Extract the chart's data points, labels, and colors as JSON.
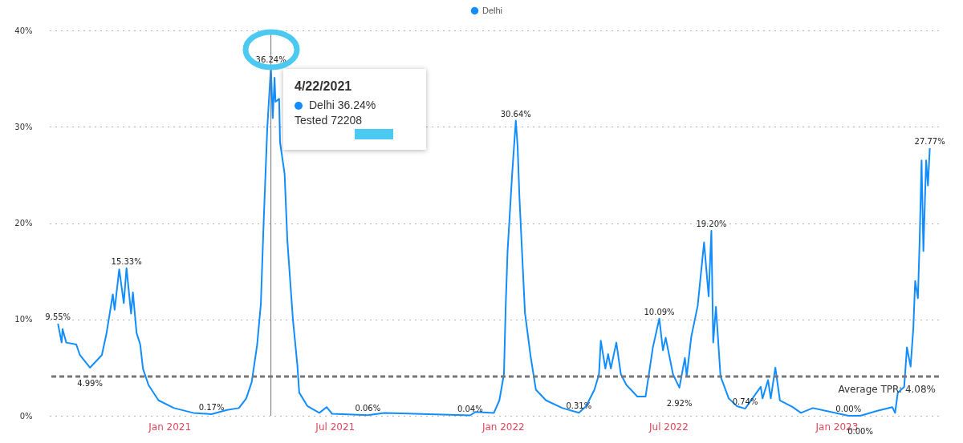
{
  "chart_data": {
    "type": "line",
    "x": [
      "2020-09-01",
      "2020-09-05",
      "2020-09-06",
      "2020-09-10",
      "2020-09-21",
      "2020-09-25",
      "2020-10-06",
      "2020-10-19",
      "2020-10-24",
      "2020-10-31",
      "2020-11-02",
      "2020-11-07",
      "2020-11-12",
      "2020-11-15",
      "2020-11-20",
      "2020-11-22",
      "2020-11-26",
      "2020-11-30",
      "2020-12-03",
      "2020-12-09",
      "2020-12-20",
      "2021-01-06",
      "2021-01-27",
      "2021-02-16",
      "2021-03-05",
      "2021-03-18",
      "2021-03-26",
      "2021-04-01",
      "2021-04-07",
      "2021-04-11",
      "2021-04-14",
      "2021-04-18",
      "2021-04-22",
      "2021-04-24",
      "2021-04-26",
      "2021-04-27",
      "2021-05-01",
      "2021-05-02",
      "2021-05-07",
      "2021-05-10",
      "2021-05-16",
      "2021-05-21",
      "2021-05-23",
      "2021-06-01",
      "2021-06-14",
      "2021-06-22",
      "2021-06-28",
      "2021-08-06",
      "2021-08-24",
      "2021-11-26",
      "2021-12-02",
      "2021-12-22",
      "2021-12-28",
      "2022-01-02",
      "2022-01-04",
      "2022-01-06",
      "2022-01-11",
      "2022-01-15",
      "2022-01-17",
      "2022-01-19",
      "2022-01-25",
      "2022-01-31",
      "2022-02-06",
      "2022-02-17",
      "2022-03-07",
      "2022-03-25",
      "2022-04-02",
      "2022-04-11",
      "2022-04-16",
      "2022-04-18",
      "2022-04-23",
      "2022-04-26",
      "2022-04-29",
      "2022-05-05",
      "2022-05-10",
      "2022-05-16",
      "2022-05-28",
      "2022-06-06",
      "2022-06-14",
      "2022-06-21",
      "2022-06-25",
      "2022-06-28",
      "2022-07-06",
      "2022-07-13",
      "2022-07-19",
      "2022-07-21",
      "2022-07-26",
      "2022-08-02",
      "2022-08-09",
      "2022-08-14",
      "2022-08-17",
      "2022-08-19",
      "2022-08-22",
      "2022-08-27",
      "2022-09-05",
      "2022-09-14",
      "2022-09-23",
      "2022-10-10",
      "2022-10-12",
      "2022-10-18",
      "2022-10-21",
      "2022-10-26",
      "2022-10-31",
      "2022-11-14",
      "2022-11-23",
      "2022-12-06",
      "2023-01-14",
      "2023-01-27",
      "2023-02-14",
      "2023-03-03",
      "2023-03-06",
      "2023-03-09",
      "2023-03-16",
      "2023-03-19",
      "2023-03-23",
      "2023-03-26",
      "2023-03-28",
      "2023-03-31",
      "2023-04-02",
      "2023-04-04",
      "2023-04-06",
      "2023-04-09",
      "2023-04-11",
      "2023-04-13"
    ],
    "series": [
      {
        "name": "Delhi",
        "color": "#118dff",
        "values": [
          9.55,
          7.6,
          9.0,
          7.6,
          7.4,
          6.3,
          4.99,
          6.3,
          8.5,
          12.6,
          11.0,
          15.2,
          11.7,
          15.33,
          10.6,
          12.8,
          8.6,
          7.4,
          4.9,
          3.2,
          1.6,
          0.8,
          0.3,
          0.17,
          0.6,
          0.8,
          1.8,
          3.5,
          7.4,
          11.6,
          19.9,
          29.8,
          36.24,
          30.9,
          35.1,
          32.6,
          32.9,
          28.4,
          25.1,
          18.2,
          10.1,
          5.2,
          2.4,
          1.0,
          0.3,
          0.9,
          0.2,
          0.06,
          0.3,
          0.04,
          0.4,
          0.3,
          1.6,
          4.3,
          11.6,
          17.1,
          25.1,
          30.64,
          27.9,
          22.6,
          10.7,
          6.3,
          2.7,
          1.6,
          0.8,
          0.31,
          1.0,
          2.7,
          4.3,
          7.8,
          4.9,
          6.4,
          4.9,
          7.6,
          4.3,
          3.2,
          2.0,
          2.0,
          7.1,
          10.09,
          6.8,
          8.1,
          4.3,
          2.92,
          6.0,
          4.1,
          8.2,
          11.4,
          18.0,
          12.4,
          19.2,
          7.6,
          11.3,
          4.1,
          1.8,
          1.0,
          0.74,
          3.0,
          1.8,
          3.7,
          1.8,
          5.0,
          1.6,
          0.9,
          0.3,
          0.8,
          0.0,
          0.0,
          0.5,
          0.9,
          0.3,
          2.4,
          3.0,
          7.1,
          5.1,
          9.1,
          14.0,
          12.2,
          18.5,
          26.5,
          17.1,
          26.5,
          23.9,
          27.77
        ],
        "value_labels": [
          "9.55%",
          null,
          null,
          null,
          null,
          null,
          "4.99%",
          null,
          null,
          null,
          null,
          null,
          null,
          "15.33%",
          null,
          null,
          null,
          null,
          null,
          null,
          null,
          null,
          null,
          "0.17%",
          null,
          null,
          null,
          null,
          null,
          null,
          null,
          null,
          "36.24%",
          null,
          null,
          null,
          null,
          null,
          null,
          null,
          null,
          null,
          null,
          null,
          null,
          null,
          null,
          "0.06%",
          null,
          "0.04%",
          null,
          null,
          null,
          null,
          null,
          null,
          null,
          "30.64%",
          null,
          null,
          null,
          null,
          null,
          null,
          null,
          "0.31%",
          null,
          null,
          null,
          null,
          null,
          null,
          null,
          null,
          null,
          null,
          null,
          null,
          null,
          "10.09%",
          null,
          null,
          null,
          "2.92%",
          null,
          null,
          null,
          null,
          null,
          null,
          "19.20%",
          null,
          null,
          null,
          null,
          null,
          "0.74%",
          null,
          null,
          null,
          null,
          null,
          null,
          null,
          null,
          null,
          "0.00%",
          "0.00%",
          null,
          null,
          null,
          null,
          null,
          null,
          null,
          null,
          null,
          null,
          null,
          null,
          null,
          null,
          null,
          "27.77%"
        ]
      }
    ],
    "xlim": [
      "2020-08-23",
      "2023-04-23"
    ],
    "xticks": [
      {
        "value": "2021-01-01",
        "label": "Jan 2021"
      },
      {
        "value": "2021-07-01",
        "label": "Jul 2021"
      },
      {
        "value": "2022-01-01",
        "label": "Jan 2022"
      },
      {
        "value": "2022-07-01",
        "label": "Jul 2022"
      },
      {
        "value": "2023-01-01",
        "label": "Jan 2023"
      }
    ],
    "ylim": [
      0,
      40
    ],
    "yticks": [
      {
        "value": 0,
        "label": "0%"
      },
      {
        "value": 10,
        "label": "10%"
      },
      {
        "value": 20,
        "label": "20%"
      },
      {
        "value": 30,
        "label": "30%"
      },
      {
        "value": 40,
        "label": "40%"
      }
    ],
    "grid": "y",
    "legend": "top",
    "marker": "none",
    "line_style": "solid",
    "ref_lines": [
      {
        "axis": "y",
        "value": 4.08,
        "label": "Average TPR: 4.08%",
        "color": "#777777",
        "line_style": "dashed"
      },
      {
        "axis": "x",
        "value": "2021-04-22",
        "color": "#777777",
        "line_style": "solid"
      }
    ],
    "annotations": [
      "4/22/2021",
      "Delhi 36.24%",
      "Tested 72208"
    ]
  }
}
